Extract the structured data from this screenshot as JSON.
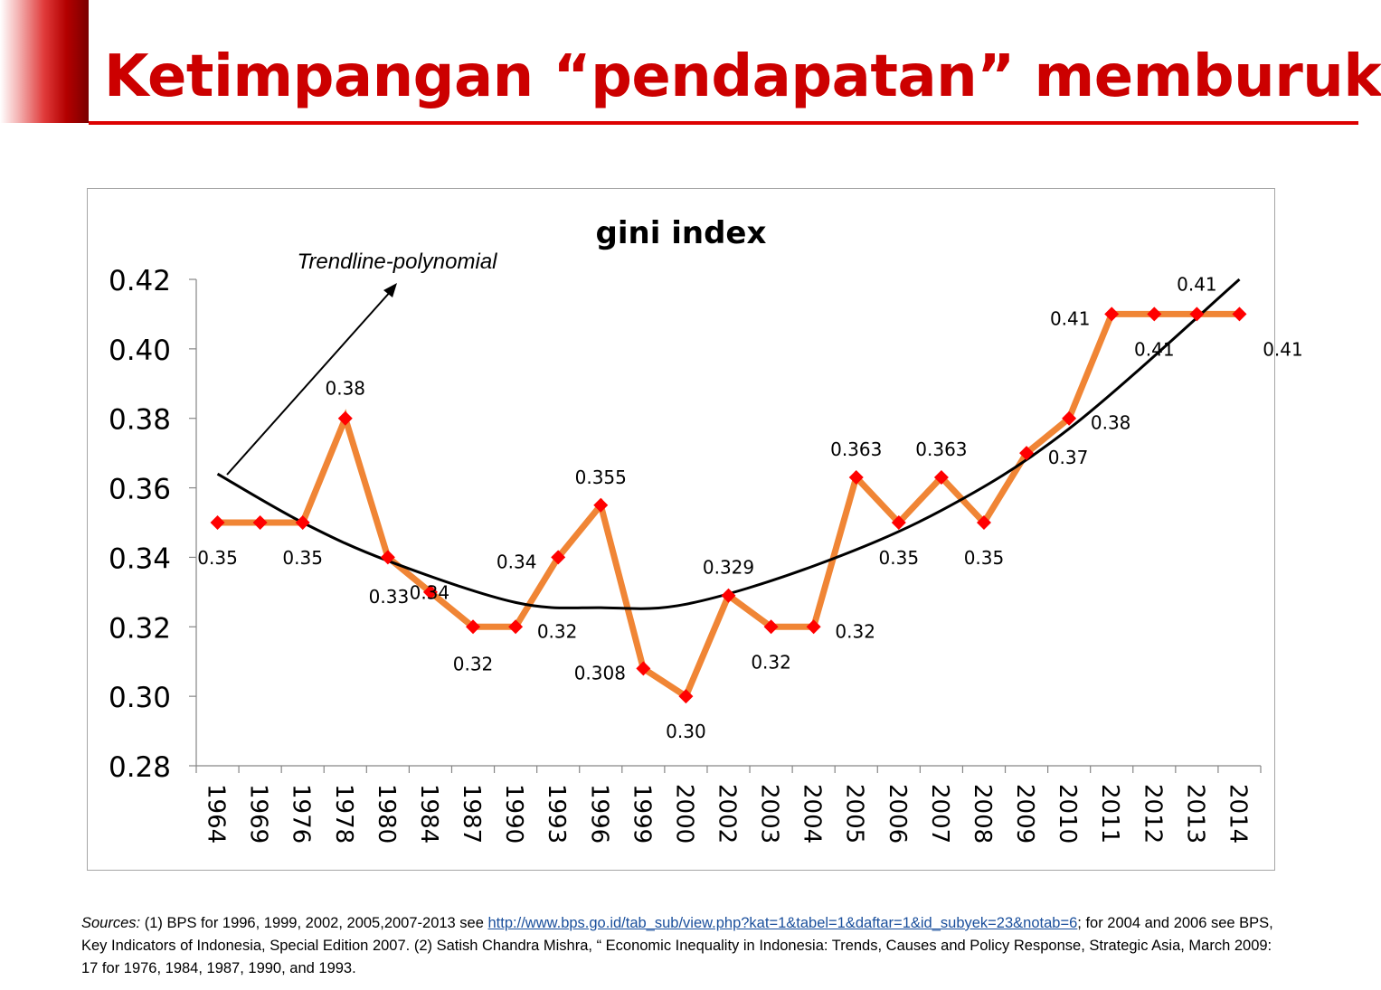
{
  "slide": {
    "title": "Ketimpangan “pendapatan” memburuk"
  },
  "colors": {
    "title": "#cc0000",
    "line": "#f08535",
    "marker": "#ff0000",
    "trend": "#000000",
    "axis": "#868686"
  },
  "chart_data": {
    "type": "line",
    "title": "gini index",
    "categories": [
      "1964",
      "1969",
      "1976",
      "1978",
      "1980",
      "1984",
      "1987",
      "1990",
      "1993",
      "1996",
      "1999",
      "2000",
      "2002",
      "2003",
      "2004",
      "2005",
      "2006",
      "2007",
      "2008",
      "2009",
      "2010",
      "2011",
      "2012",
      "2013",
      "2014"
    ],
    "series": [
      {
        "name": "gini index",
        "values": [
          0.35,
          0.35,
          0.35,
          0.38,
          0.34,
          0.33,
          0.32,
          0.32,
          0.34,
          0.355,
          0.308,
          0.3,
          0.329,
          0.32,
          0.32,
          0.363,
          0.35,
          0.363,
          0.35,
          0.37,
          0.38,
          0.41,
          0.41,
          0.41,
          0.41
        ]
      }
    ],
    "data_labels": [
      "0.35",
      "",
      "0.35",
      "0.38",
      "0.34",
      "0.33",
      "0.32",
      "0.32",
      "0.34",
      "0.355",
      "0.308",
      "0.30",
      "0.329",
      "0.32",
      "0.32",
      "0.363",
      "0.35",
      "0.363",
      "0.35",
      "0.37",
      "0.38",
      "0.41",
      "0.41",
      "0.41",
      "0.41"
    ],
    "ylim": [
      0.28,
      0.42
    ],
    "yticks": [
      "0.28",
      "0.30",
      "0.32",
      "0.34",
      "0.36",
      "0.38",
      "0.40",
      "0.42"
    ],
    "xlabel": "",
    "ylabel": "",
    "legend": "none",
    "trendline": {
      "type": "polynomial",
      "label": "Trendline-polynomial",
      "points": [
        {
          "x": "1964",
          "y": 0.364
        },
        {
          "x": "1976",
          "y": 0.35
        },
        {
          "x": "1980",
          "y": 0.339
        },
        {
          "x": "1990",
          "y": 0.327
        },
        {
          "x": "1996",
          "y": 0.3255
        },
        {
          "x": "2000",
          "y": 0.3265
        },
        {
          "x": "2004",
          "y": 0.3375
        },
        {
          "x": "2007",
          "y": 0.3535
        },
        {
          "x": "2010",
          "y": 0.377
        },
        {
          "x": "2014",
          "y": 0.42
        }
      ]
    }
  },
  "sources": {
    "label": "Sources:",
    "text1": " (1) BPS for 1996, 1999, 2002, 2005,2007-2013 see ",
    "link": "http://www.bps.go.id/tab_sub/view.php?kat=1&tabel=1&daftar=1&id_subyek=23&notab=6",
    "text2": "; for 2004 and 2006 see BPS, Key Indicators of Indonesia, Special Edition 2007. (2) Satish Chandra Mishra, “ Economic Inequality in Indonesia: Trends, Causes and Policy Response, Strategic Asia, March 2009: 17 for 1976, 1984, 1987, 1990, and 1993."
  }
}
